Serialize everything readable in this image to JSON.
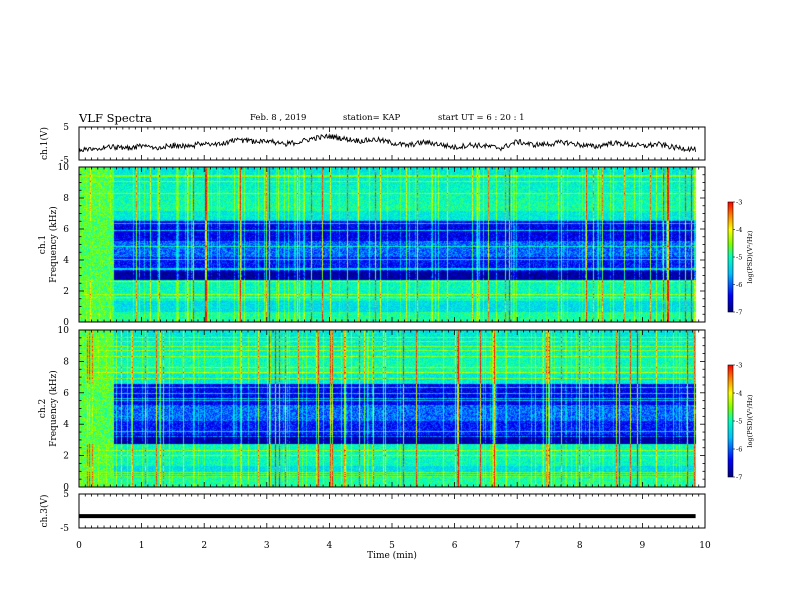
{
  "header": {
    "title": "VLF Spectra",
    "date": "Feb. 8 , 2019",
    "station": "station= KAP",
    "start_ut": "start UT =  6 : 20 : 1"
  },
  "chart_data": [
    {
      "type": "line",
      "panel": "ch1-waveform",
      "ylabel": "ch.1(V)",
      "ylim": [
        -5,
        5
      ],
      "yticks": [
        5,
        -5
      ],
      "xlim": [
        0,
        10
      ],
      "x": [
        0,
        0.25,
        0.5,
        0.75,
        1,
        1.25,
        1.5,
        1.75,
        2,
        2.25,
        2.5,
        2.75,
        3,
        3.25,
        3.5,
        3.75,
        4,
        4.25,
        4.5,
        4.75,
        5,
        5.25,
        5.5,
        5.75,
        6,
        6.25,
        6.5,
        6.75,
        7,
        7.25,
        7.5,
        7.75,
        8,
        8.25,
        8.5,
        8.75,
        9,
        9.25,
        9.5,
        9.75,
        9.85
      ],
      "y": [
        -2.2,
        -1.6,
        -1.0,
        -1.4,
        -0.8,
        -1.2,
        -0.6,
        -1.0,
        0.2,
        -0.4,
        1.2,
        0.6,
        1.0,
        -0.2,
        0.4,
        1.6,
        2.2,
        1.4,
        0.8,
        1.2,
        0.2,
        -0.6,
        0.4,
        -0.2,
        -1.2,
        -0.4,
        -0.8,
        -1.4,
        0.6,
        -0.4,
        -0.2,
        0.4,
        -0.4,
        -1.0,
        0.2,
        -0.2,
        -0.8,
        -0.2,
        -1.2,
        -1.6,
        -1.8
      ]
    },
    {
      "type": "heatmap",
      "panel": "ch1-spectrogram",
      "ylabel_top": "ch.1",
      "ylabel": "Frequency (kHz)",
      "ylim": [
        0,
        10
      ],
      "yticks": [
        0,
        2,
        4,
        6,
        8,
        10
      ],
      "xlim": [
        0,
        10
      ],
      "colorbar": {
        "label": "log(PSD)(V²/Hz)",
        "range": [
          -7,
          -3
        ],
        "ticks": [
          "-3",
          "-4",
          "-5",
          "-6",
          "-7"
        ]
      }
    },
    {
      "type": "heatmap",
      "panel": "ch2-spectrogram",
      "ylabel_top": "ch.2",
      "ylabel": "Frequency (kHz)",
      "ylim": [
        0,
        10
      ],
      "yticks": [
        0,
        2,
        4,
        6,
        8,
        10
      ],
      "xlim": [
        0,
        10
      ],
      "colorbar": {
        "label": "log(PSD)(V²/Hz)",
        "range": [
          -7,
          -3
        ],
        "ticks": [
          "-3",
          "-4",
          "-5",
          "-6",
          "-7"
        ]
      }
    },
    {
      "type": "line",
      "panel": "ch3-waveform",
      "ylabel": "ch.3(V)",
      "ylim": [
        -5,
        5
      ],
      "yticks": [
        5,
        -5
      ],
      "xlim": [
        0,
        10
      ],
      "x": [
        0,
        9.85
      ],
      "y": [
        -1.5,
        -1.5
      ]
    }
  ],
  "x_axis": {
    "label": "Time (min)",
    "ticks": [
      "0",
      "1",
      "2",
      "3",
      "4",
      "5",
      "6",
      "7",
      "8",
      "9",
      "10"
    ]
  },
  "colors": {
    "trace": "#000000",
    "colormap": [
      "#00007f",
      "#0000ff",
      "#00bfff",
      "#00ffbf",
      "#7fff00",
      "#ffff00",
      "#ff7f00",
      "#ff0000"
    ]
  }
}
